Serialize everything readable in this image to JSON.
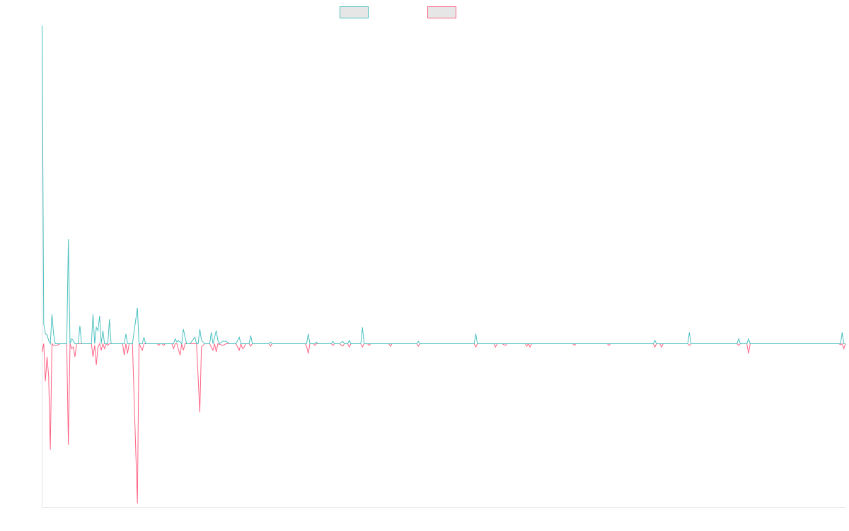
{
  "chart_data": {
    "type": "line",
    "title": "",
    "xlabel": "",
    "ylabel": "",
    "ylim": [
      -1.0,
      1.95
    ],
    "x_count": 489,
    "grid": false,
    "legend": {
      "placement": "top-center",
      "entries": [
        {
          "name": "",
          "color": "#4bc0c0",
          "fill": "#e6e6e6"
        },
        {
          "name": "",
          "color": "#ff6384",
          "fill": "#e6e6e6"
        }
      ]
    },
    "series": [
      {
        "name": "",
        "color": "#4bc0c0",
        "points": [
          [
            0,
            1.95
          ],
          [
            1,
            0.12
          ],
          [
            2,
            0.06
          ],
          [
            3,
            0.055
          ],
          [
            4,
            0.02
          ],
          [
            5,
            0.0
          ],
          [
            6,
            0.18
          ],
          [
            7,
            0.06
          ],
          [
            8,
            0.0
          ],
          [
            9,
            0.0
          ],
          [
            10,
            0.0
          ],
          [
            11,
            0.0
          ],
          [
            12,
            0.0
          ],
          [
            13,
            0.0
          ],
          [
            14,
            0.0
          ],
          [
            15,
            0.0
          ],
          [
            16,
            0.64
          ],
          [
            17,
            0.0
          ],
          [
            18,
            0.03
          ],
          [
            19,
            0.02
          ],
          [
            20,
            0.0
          ],
          [
            21,
            0.0
          ],
          [
            22,
            0.0
          ],
          [
            23,
            0.11
          ],
          [
            24,
            0.0
          ],
          [
            30,
            0.0
          ],
          [
            31,
            0.18
          ],
          [
            32,
            0.0
          ],
          [
            33,
            0.1
          ],
          [
            34,
            0.08
          ],
          [
            35,
            0.17
          ],
          [
            36,
            0.0
          ],
          [
            37,
            0.08
          ],
          [
            38,
            0.0
          ],
          [
            39,
            0.0
          ],
          [
            40,
            0.0
          ],
          [
            41,
            0.15
          ],
          [
            42,
            0.0
          ],
          [
            50,
            0.0
          ],
          [
            51,
            0.06
          ],
          [
            52,
            0.0
          ],
          [
            54,
            0.0
          ],
          [
            55,
            0.0
          ],
          [
            58,
            0.22
          ],
          [
            59,
            0.0
          ],
          [
            61,
            0.0
          ],
          [
            62,
            0.04
          ],
          [
            63,
            0.0
          ],
          [
            70,
            0.0
          ],
          [
            72,
            0.0
          ],
          [
            80,
            0.0
          ],
          [
            81,
            0.03
          ],
          [
            82,
            0.01
          ],
          [
            83,
            0.02
          ],
          [
            85,
            0.0
          ],
          [
            86,
            0.09
          ],
          [
            87,
            0.04
          ],
          [
            88,
            0.0
          ],
          [
            90,
            0.0
          ],
          [
            93,
            0.04
          ],
          [
            94,
            0.0
          ],
          [
            95,
            0.0
          ],
          [
            96,
            0.09
          ],
          [
            97,
            0.02
          ],
          [
            98,
            0.01
          ],
          [
            99,
            0.0
          ],
          [
            102,
            0.0
          ],
          [
            103,
            0.07
          ],
          [
            104,
            0.0
          ],
          [
            106,
            0.08
          ],
          [
            107,
            0.02
          ],
          [
            108,
            0.0
          ],
          [
            110,
            0.015
          ],
          [
            112,
            0.015
          ],
          [
            114,
            0.0
          ],
          [
            118,
            0.0
          ],
          [
            120,
            0.04
          ],
          [
            121,
            0.0
          ],
          [
            126,
            0.0
          ],
          [
            127,
            0.05
          ],
          [
            128,
            0.0
          ],
          [
            129,
            0.0
          ],
          [
            130,
            0.0
          ],
          [
            136,
            0.0
          ],
          [
            138,
            0.0
          ],
          [
            139,
            0.01
          ],
          [
            140,
            0.0
          ],
          [
            142,
            0.0
          ],
          [
            156,
            0.0
          ],
          [
            161,
            0.0
          ],
          [
            162,
            0.06
          ],
          [
            163,
            0.0
          ],
          [
            166,
            0.0
          ],
          [
            167,
            0.01
          ],
          [
            168,
            0.0
          ],
          [
            170,
            0.0
          ],
          [
            176,
            0.0
          ],
          [
            177,
            0.015
          ],
          [
            178,
            0.0
          ],
          [
            181,
            0.0
          ],
          [
            183,
            0.015
          ],
          [
            184,
            0.0
          ],
          [
            186,
            0.0
          ],
          [
            187,
            0.02
          ],
          [
            188,
            0.0
          ],
          [
            194,
            0.0
          ],
          [
            195,
            0.1
          ],
          [
            196,
            0.0
          ],
          [
            198,
            0.0
          ],
          [
            200,
            0.0
          ],
          [
            211,
            0.0
          ],
          [
            212,
            0.0
          ],
          [
            213,
            0.0
          ],
          [
            225,
            0.0
          ],
          [
            228,
            0.0
          ],
          [
            229,
            0.015
          ],
          [
            230,
            0.0
          ],
          [
            263,
            0.0
          ],
          [
            264,
            0.06
          ],
          [
            265,
            0.0
          ],
          [
            280,
            0.0
          ],
          [
            294,
            0.0
          ],
          [
            295,
            0.0
          ],
          [
            296,
            0.0
          ],
          [
            297,
            0.0
          ],
          [
            323,
            0.0
          ],
          [
            328,
            0.0
          ],
          [
            332,
            0.0
          ],
          [
            340,
            0.0
          ],
          [
            345,
            0.0
          ],
          [
            347,
            0.0
          ],
          [
            352,
            0.0
          ],
          [
            355,
            0.0
          ],
          [
            372,
            0.0
          ],
          [
            373,
            0.02
          ],
          [
            374,
            0.0
          ],
          [
            393,
            0.0
          ],
          [
            394,
            0.07
          ],
          [
            395,
            0.0
          ],
          [
            400,
            0.0
          ],
          [
            420,
            0.0
          ],
          [
            423,
            0.0
          ],
          [
            424,
            0.03
          ],
          [
            425,
            0.0
          ],
          [
            428,
            0.0
          ],
          [
            429,
            0.0
          ],
          [
            430,
            0.03
          ],
          [
            431,
            0.0
          ],
          [
            483,
            0.0
          ],
          [
            485,
            0.0
          ],
          [
            486,
            0.0
          ],
          [
            487,
            0.07
          ],
          [
            488,
            0.0
          ],
          [
            489,
            0.0
          ]
        ]
      },
      {
        "name": "",
        "color": "#ff6384",
        "points": [
          [
            0,
            -0.05
          ],
          [
            1,
            0.0
          ],
          [
            2,
            -0.23
          ],
          [
            3,
            -0.08
          ],
          [
            4,
            -0.2
          ],
          [
            5,
            -0.65
          ],
          [
            6,
            0.0
          ],
          [
            7,
            -0.01
          ],
          [
            8,
            -0.01
          ],
          [
            9,
            -0.01
          ],
          [
            10,
            -0.005
          ],
          [
            11,
            0.0
          ],
          [
            12,
            0.0
          ],
          [
            13,
            0.0
          ],
          [
            14,
            0.0
          ],
          [
            15,
            0.0
          ],
          [
            16,
            -0.62
          ],
          [
            17,
            0.0
          ],
          [
            18,
            -0.03
          ],
          [
            19,
            -0.02
          ],
          [
            20,
            -0.08
          ],
          [
            21,
            0.0
          ],
          [
            22,
            0.0
          ],
          [
            24,
            0.0
          ],
          [
            30,
            0.0
          ],
          [
            31,
            -0.08
          ],
          [
            32,
            -0.01
          ],
          [
            33,
            -0.13
          ],
          [
            34,
            -0.02
          ],
          [
            35,
            0.0
          ],
          [
            36,
            -0.04
          ],
          [
            37,
            0.0
          ],
          [
            38,
            -0.03
          ],
          [
            39,
            0.0
          ],
          [
            40,
            -0.01
          ],
          [
            41,
            0.0
          ],
          [
            42,
            0.0
          ],
          [
            49,
            0.0
          ],
          [
            50,
            -0.07
          ],
          [
            51,
            0.0
          ],
          [
            52,
            -0.06
          ],
          [
            53,
            0.0
          ],
          [
            54,
            0.0
          ],
          [
            55,
            0.0
          ],
          [
            58,
            -0.98
          ],
          [
            59,
            0.0
          ],
          [
            61,
            -0.04
          ],
          [
            62,
            0.0
          ],
          [
            63,
            0.0
          ],
          [
            70,
            0.0
          ],
          [
            71,
            -0.01
          ],
          [
            72,
            0.0
          ],
          [
            73,
            0.0
          ],
          [
            74,
            -0.01
          ],
          [
            75,
            0.0
          ],
          [
            79,
            0.0
          ],
          [
            80,
            -0.03
          ],
          [
            81,
            0.0
          ],
          [
            82,
            0.0
          ],
          [
            84,
            -0.07
          ],
          [
            85,
            0.0
          ],
          [
            86,
            -0.04
          ],
          [
            87,
            0.0
          ],
          [
            90,
            0.0
          ],
          [
            94,
            0.0
          ],
          [
            96,
            -0.42
          ],
          [
            97,
            -0.02
          ],
          [
            98,
            -0.01
          ],
          [
            99,
            0.0
          ],
          [
            102,
            0.0
          ],
          [
            104,
            -0.04
          ],
          [
            105,
            0.0
          ],
          [
            106,
            -0.05
          ],
          [
            107,
            0.0
          ],
          [
            110,
            -0.01
          ],
          [
            112,
            0.0
          ],
          [
            118,
            0.0
          ],
          [
            119,
            -0.02
          ],
          [
            120,
            -0.04
          ],
          [
            121,
            0.0
          ],
          [
            122,
            -0.03
          ],
          [
            123,
            -0.02
          ],
          [
            124,
            0.0
          ],
          [
            126,
            0.0
          ],
          [
            127,
            -0.015
          ],
          [
            128,
            0.0
          ],
          [
            129,
            0.0
          ],
          [
            130,
            0.0
          ],
          [
            138,
            0.0
          ],
          [
            139,
            -0.015
          ],
          [
            140,
            0.0
          ],
          [
            142,
            0.0
          ],
          [
            156,
            0.0
          ],
          [
            160,
            0.0
          ],
          [
            161,
            -0.015
          ],
          [
            162,
            -0.06
          ],
          [
            163,
            0.0
          ],
          [
            165,
            0.0
          ],
          [
            166,
            -0.01
          ],
          [
            167,
            0.0
          ],
          [
            176,
            0.0
          ],
          [
            177,
            -0.01
          ],
          [
            178,
            0.0
          ],
          [
            181,
            0.0
          ],
          [
            183,
            -0.015
          ],
          [
            184,
            0.0
          ],
          [
            186,
            0.0
          ],
          [
            187,
            -0.02
          ],
          [
            188,
            0.0
          ],
          [
            194,
            0.0
          ],
          [
            195,
            -0.02
          ],
          [
            196,
            0.0
          ],
          [
            198,
            0.0
          ],
          [
            199,
            -0.01
          ],
          [
            200,
            0.0
          ],
          [
            211,
            0.0
          ],
          [
            212,
            -0.015
          ],
          [
            213,
            0.0
          ],
          [
            225,
            0.0
          ],
          [
            228,
            0.0
          ],
          [
            229,
            -0.015
          ],
          [
            230,
            0.0
          ],
          [
            263,
            0.0
          ],
          [
            264,
            -0.02
          ],
          [
            265,
            0.0
          ],
          [
            275,
            0.0
          ],
          [
            276,
            -0.02
          ],
          [
            277,
            0.0
          ],
          [
            280,
            0.0
          ],
          [
            282,
            -0.01
          ],
          [
            283,
            0.0
          ],
          [
            294,
            0.0
          ],
          [
            295,
            -0.015
          ],
          [
            296,
            0.0
          ],
          [
            297,
            -0.02
          ],
          [
            298,
            0.0
          ],
          [
            323,
            0.0
          ],
          [
            324,
            -0.01
          ],
          [
            325,
            0.0
          ],
          [
            328,
            0.0
          ],
          [
            332,
            0.0
          ],
          [
            340,
            0.0
          ],
          [
            344,
            0.0
          ],
          [
            345,
            -0.01
          ],
          [
            346,
            0.0
          ],
          [
            350,
            0.0
          ],
          [
            352,
            0.0
          ],
          [
            372,
            0.0
          ],
          [
            373,
            -0.02
          ],
          [
            374,
            0.0
          ],
          [
            376,
            0.0
          ],
          [
            377,
            -0.02
          ],
          [
            378,
            0.0
          ],
          [
            393,
            0.0
          ],
          [
            394,
            -0.01
          ],
          [
            395,
            0.0
          ],
          [
            400,
            0.0
          ],
          [
            423,
            0.0
          ],
          [
            424,
            -0.01
          ],
          [
            425,
            0.0
          ],
          [
            429,
            0.0
          ],
          [
            430,
            -0.06
          ],
          [
            431,
            0.0
          ],
          [
            483,
            0.0
          ],
          [
            485,
            0.0
          ],
          [
            486,
            -0.005
          ],
          [
            487,
            0.0
          ],
          [
            488,
            -0.03
          ],
          [
            489,
            0.0
          ]
        ]
      }
    ]
  }
}
